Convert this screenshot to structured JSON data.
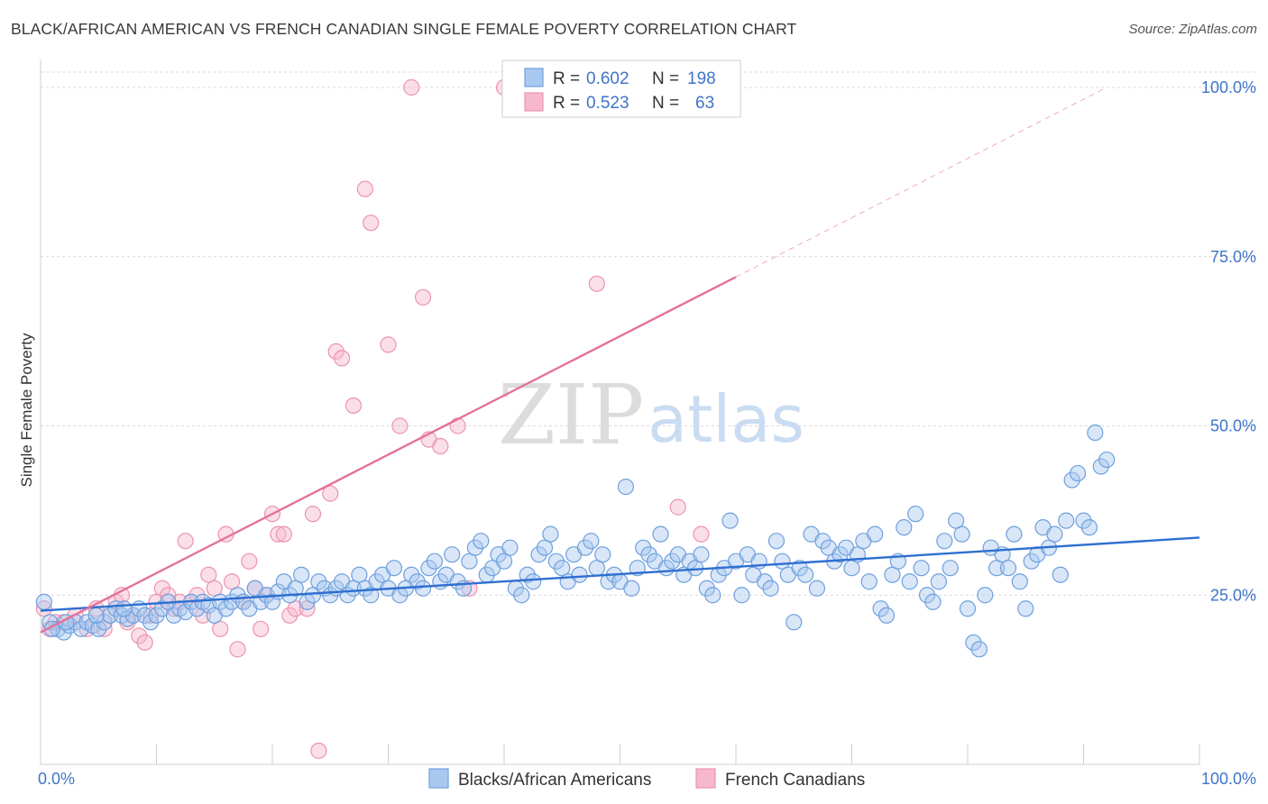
{
  "header": {
    "title": "BLACK/AFRICAN AMERICAN VS FRENCH CANADIAN SINGLE FEMALE POVERTY CORRELATION CHART",
    "source": "Source: ZipAtlas.com"
  },
  "watermark": {
    "zip": "ZIP",
    "atlas": "atlas"
  },
  "legend": {
    "r_label": "R =",
    "n_label": "N =",
    "series": [
      {
        "r": "0.602",
        "n": "198"
      },
      {
        "r": "0.523",
        "n": "63"
      }
    ]
  },
  "colors": {
    "blue_fill": "#a9c8f0",
    "blue_stroke": "#6fa0dd",
    "blue_line": "#2e6fd0",
    "pink_fill": "#f7b8cc",
    "pink_stroke": "#ec93b0",
    "pink_line": "#e4729a",
    "tick_text": "#3f74c9",
    "grid": "#d9d9d9"
  },
  "chart_data": {
    "type": "scatter",
    "title": "BLACK/AFRICAN AMERICAN VS FRENCH CANADIAN SINGLE FEMALE POVERTY CORRELATION CHART",
    "xlabel": "",
    "ylabel": "Single Female Poverty",
    "xlim": [
      0,
      100
    ],
    "ylim": [
      0,
      100
    ],
    "x_tick_labels": [
      "0.0%",
      "100.0%"
    ],
    "y_ticks": [
      25,
      50,
      75,
      100
    ],
    "y_tick_labels": [
      "25.0%",
      "50.0%",
      "75.0%",
      "100.0%"
    ],
    "grid": "horizontal dashed",
    "legend_position": "top-center",
    "series": [
      {
        "name": "Blacks/African Americans",
        "color": "#a9c8f0",
        "trend": {
          "x": [
            0,
            100
          ],
          "y": [
            22.7,
            33.5
          ]
        },
        "points": [
          [
            0.3,
            24
          ],
          [
            0.8,
            21
          ],
          [
            1.5,
            20
          ],
          [
            2,
            19.5
          ],
          [
            2.5,
            20.5
          ],
          [
            3,
            21
          ],
          [
            3.5,
            20
          ],
          [
            4,
            21
          ],
          [
            4.5,
            20.5
          ],
          [
            5,
            20
          ],
          [
            5.5,
            21
          ],
          [
            6,
            22
          ],
          [
            6.5,
            23
          ],
          [
            7,
            22
          ],
          [
            7.5,
            21.5
          ],
          [
            8,
            22
          ],
          [
            8.5,
            23
          ],
          [
            9,
            22
          ],
          [
            9.5,
            21
          ],
          [
            10,
            22
          ],
          [
            10.5,
            23
          ],
          [
            11,
            24
          ],
          [
            11.5,
            22
          ],
          [
            12,
            23
          ],
          [
            12.5,
            22.5
          ],
          [
            13,
            24
          ],
          [
            13.5,
            23
          ],
          [
            14,
            24
          ],
          [
            14.5,
            23.5
          ],
          [
            15,
            22
          ],
          [
            15.5,
            24
          ],
          [
            16,
            23
          ],
          [
            16.5,
            24
          ],
          [
            17,
            25
          ],
          [
            17.5,
            24
          ],
          [
            18,
            23
          ],
          [
            18.5,
            26
          ],
          [
            19,
            24
          ],
          [
            19.5,
            25
          ],
          [
            20,
            24
          ],
          [
            20.5,
            25.5
          ],
          [
            21,
            27
          ],
          [
            21.5,
            25
          ],
          [
            22,
            26
          ],
          [
            22.5,
            28
          ],
          [
            23,
            24
          ],
          [
            23.5,
            25
          ],
          [
            24,
            27
          ],
          [
            24.5,
            26
          ],
          [
            25,
            25
          ],
          [
            25.5,
            26
          ],
          [
            26,
            27
          ],
          [
            26.5,
            25
          ],
          [
            27,
            26
          ],
          [
            27.5,
            28
          ],
          [
            28,
            26
          ],
          [
            28.5,
            25
          ],
          [
            29,
            27
          ],
          [
            29.5,
            28
          ],
          [
            30,
            26
          ],
          [
            30.5,
            29
          ],
          [
            31,
            25
          ],
          [
            31.5,
            26
          ],
          [
            32,
            28
          ],
          [
            32.5,
            27
          ],
          [
            33,
            26
          ],
          [
            33.5,
            29
          ],
          [
            34,
            30
          ],
          [
            34.5,
            27
          ],
          [
            35,
            28
          ],
          [
            35.5,
            31
          ],
          [
            36,
            27
          ],
          [
            36.5,
            26
          ],
          [
            37,
            30
          ],
          [
            37.5,
            32
          ],
          [
            38,
            33
          ],
          [
            38.5,
            28
          ],
          [
            39,
            29
          ],
          [
            39.5,
            31
          ],
          [
            40,
            30
          ],
          [
            40.5,
            32
          ],
          [
            41,
            26
          ],
          [
            41.5,
            25
          ],
          [
            42,
            28
          ],
          [
            42.5,
            27
          ],
          [
            43,
            31
          ],
          [
            43.5,
            32
          ],
          [
            44,
            34
          ],
          [
            44.5,
            30
          ],
          [
            45,
            29
          ],
          [
            45.5,
            27
          ],
          [
            46,
            31
          ],
          [
            46.5,
            28
          ],
          [
            47,
            32
          ],
          [
            47.5,
            33
          ],
          [
            48,
            29
          ],
          [
            48.5,
            31
          ],
          [
            49,
            27
          ],
          [
            49.5,
            28
          ],
          [
            50,
            27
          ],
          [
            50.5,
            41
          ],
          [
            51,
            26
          ],
          [
            51.5,
            29
          ],
          [
            52,
            32
          ],
          [
            52.5,
            31
          ],
          [
            53,
            30
          ],
          [
            53.5,
            34
          ],
          [
            54,
            29
          ],
          [
            54.5,
            30
          ],
          [
            55,
            31
          ],
          [
            55.5,
            28
          ],
          [
            56,
            30
          ],
          [
            56.5,
            29
          ],
          [
            57,
            31
          ],
          [
            57.5,
            26
          ],
          [
            58,
            25
          ],
          [
            58.5,
            28
          ],
          [
            59,
            29
          ],
          [
            59.5,
            36
          ],
          [
            60,
            30
          ],
          [
            60.5,
            25
          ],
          [
            61,
            31
          ],
          [
            61.5,
            28
          ],
          [
            62,
            30
          ],
          [
            62.5,
            27
          ],
          [
            63,
            26
          ],
          [
            63.5,
            33
          ],
          [
            64,
            30
          ],
          [
            64.5,
            28
          ],
          [
            65,
            21
          ],
          [
            65.5,
            29
          ],
          [
            66,
            28
          ],
          [
            66.5,
            34
          ],
          [
            67,
            26
          ],
          [
            67.5,
            33
          ],
          [
            68,
            32
          ],
          [
            68.5,
            30
          ],
          [
            69,
            31
          ],
          [
            69.5,
            32
          ],
          [
            70,
            29
          ],
          [
            70.5,
            31
          ],
          [
            71,
            33
          ],
          [
            71.5,
            27
          ],
          [
            72,
            34
          ],
          [
            72.5,
            23
          ],
          [
            73,
            22
          ],
          [
            73.5,
            28
          ],
          [
            74,
            30
          ],
          [
            74.5,
            35
          ],
          [
            75,
            27
          ],
          [
            75.5,
            37
          ],
          [
            76,
            29
          ],
          [
            76.5,
            25
          ],
          [
            77,
            24
          ],
          [
            77.5,
            27
          ],
          [
            78,
            33
          ],
          [
            78.5,
            29
          ],
          [
            79,
            36
          ],
          [
            79.5,
            34
          ],
          [
            80,
            23
          ],
          [
            80.5,
            18
          ],
          [
            81,
            17
          ],
          [
            81.5,
            25
          ],
          [
            82,
            32
          ],
          [
            82.5,
            29
          ],
          [
            83,
            31
          ],
          [
            83.5,
            29
          ],
          [
            84,
            34
          ],
          [
            84.5,
            27
          ],
          [
            85,
            23
          ],
          [
            85.5,
            30
          ],
          [
            86,
            31
          ],
          [
            86.5,
            35
          ],
          [
            87,
            32
          ],
          [
            87.5,
            34
          ],
          [
            88,
            28
          ],
          [
            88.5,
            36
          ],
          [
            89,
            42
          ],
          [
            89.5,
            43
          ],
          [
            90,
            36
          ],
          [
            90.5,
            35
          ],
          [
            91,
            49
          ],
          [
            91.5,
            44
          ],
          [
            92,
            45
          ],
          [
            1,
            20
          ],
          [
            2.2,
            21
          ],
          [
            4.8,
            22
          ],
          [
            7.2,
            23
          ]
        ]
      },
      {
        "name": "French Canadians",
        "color": "#f7b8cc",
        "trend": {
          "x": [
            0,
            60
          ],
          "y": [
            19.5,
            72
          ]
        },
        "trend_dashed": {
          "x": [
            60,
            92
          ],
          "y": [
            72,
            100
          ]
        },
        "points": [
          [
            0.3,
            23
          ],
          [
            0.8,
            20
          ],
          [
            1.3,
            21
          ],
          [
            2,
            21
          ],
          [
            3,
            22
          ],
          [
            4,
            20
          ],
          [
            4.8,
            23
          ],
          [
            5.5,
            20
          ],
          [
            6,
            22
          ],
          [
            6.5,
            24
          ],
          [
            7,
            25
          ],
          [
            7.5,
            21
          ],
          [
            8,
            22
          ],
          [
            8.5,
            19
          ],
          [
            9,
            18
          ],
          [
            9.5,
            22
          ],
          [
            10,
            24
          ],
          [
            10.5,
            26
          ],
          [
            11,
            25
          ],
          [
            11.5,
            23
          ],
          [
            12,
            24
          ],
          [
            12.5,
            33
          ],
          [
            13,
            24
          ],
          [
            13.5,
            25
          ],
          [
            14,
            22
          ],
          [
            14.5,
            28
          ],
          [
            15,
            26
          ],
          [
            15.5,
            20
          ],
          [
            16,
            34
          ],
          [
            16.5,
            27
          ],
          [
            17,
            17
          ],
          [
            17.5,
            24
          ],
          [
            18,
            30
          ],
          [
            18.5,
            26
          ],
          [
            19,
            20
          ],
          [
            19.5,
            25
          ],
          [
            20,
            37
          ],
          [
            20.5,
            34
          ],
          [
            21,
            34
          ],
          [
            21.5,
            22
          ],
          [
            22,
            23
          ],
          [
            23,
            23
          ],
          [
            23.5,
            37
          ],
          [
            24,
            2
          ],
          [
            25,
            40
          ],
          [
            25.5,
            61
          ],
          [
            26,
            60
          ],
          [
            27,
            53
          ],
          [
            28,
            85
          ],
          [
            28.5,
            80
          ],
          [
            30,
            62
          ],
          [
            31,
            50
          ],
          [
            32,
            100
          ],
          [
            33,
            69
          ],
          [
            33.5,
            48
          ],
          [
            34.5,
            47
          ],
          [
            36,
            50
          ],
          [
            37,
            26
          ],
          [
            40,
            100
          ],
          [
            45,
            100
          ],
          [
            48,
            71
          ],
          [
            55,
            38
          ],
          [
            57,
            34
          ]
        ]
      }
    ]
  }
}
